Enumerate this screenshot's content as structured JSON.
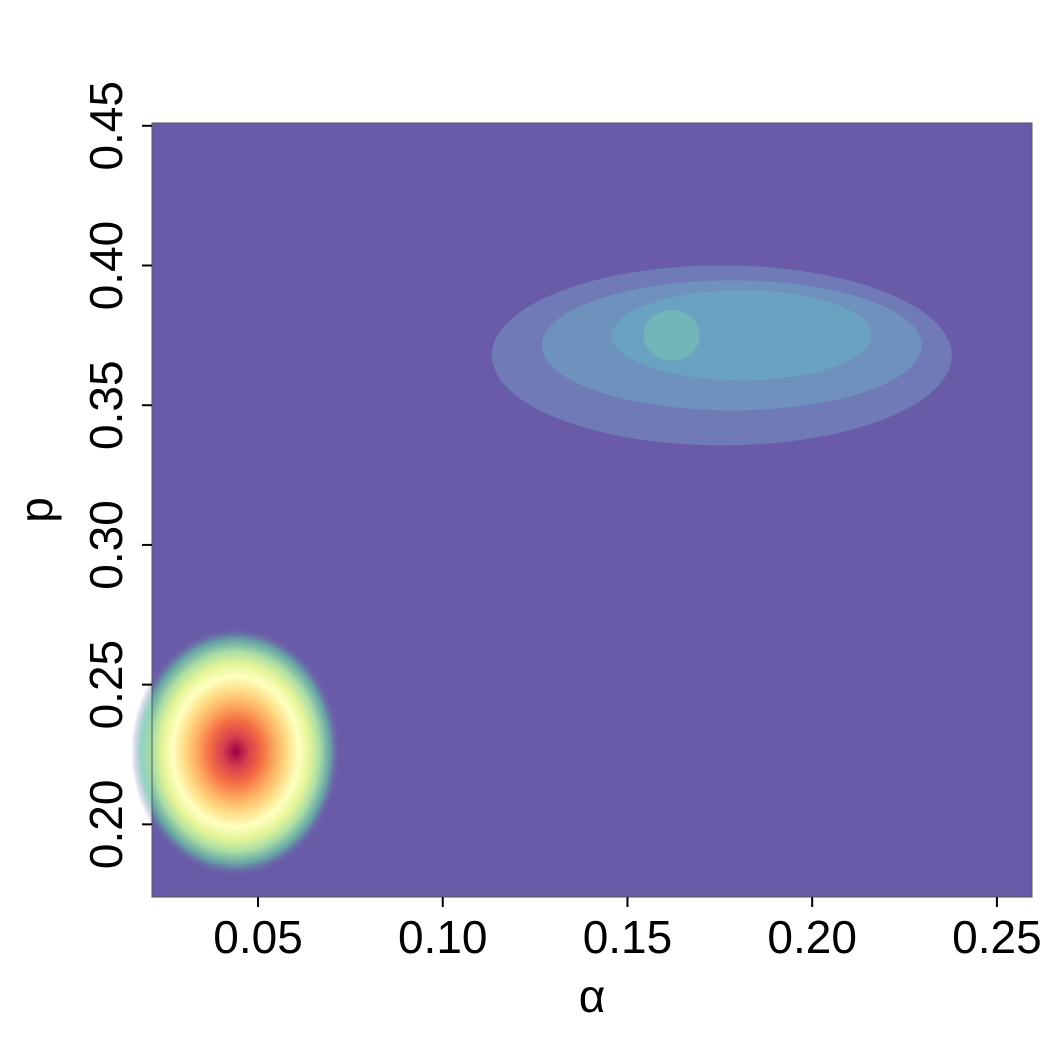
{
  "chart_data": {
    "type": "density",
    "xlabel": "α",
    "ylabel": "p",
    "xlim": [
      0.0213,
      0.2595
    ],
    "ylim": [
      0.174,
      0.451
    ],
    "xticks": [
      0.05,
      {
        "value": 0.1,
        "label": "0.10"
      },
      0.15,
      {
        "value": 0.2,
        "label": "0.20"
      },
      0.25
    ],
    "yticks": [
      {
        "value": 0.2,
        "label": "0.20"
      },
      0.25,
      {
        "value": 0.3,
        "label": "0.30"
      },
      0.35,
      {
        "value": 0.4,
        "label": "0.40"
      },
      0.45
    ],
    "peaks": [
      {
        "x": 0.044,
        "y": 0.226
      },
      {
        "x": 0.162,
        "y": 0.375
      }
    ]
  }
}
